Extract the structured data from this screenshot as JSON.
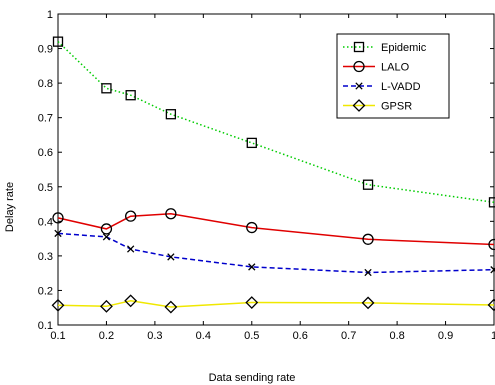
{
  "chart_data": {
    "type": "line",
    "title": "",
    "xlabel": "Data sending rate",
    "ylabel": "Delay rate",
    "xlim": [
      0.1,
      1
    ],
    "ylim": [
      0.1,
      1
    ],
    "x_ticks": [
      0.1,
      0.2,
      0.3,
      0.4,
      0.5,
      0.6,
      0.7,
      0.8,
      0.9,
      1
    ],
    "x_tick_labels": [
      "0.1",
      "0.2",
      "0.3",
      "0.4",
      "0.5",
      "0.6",
      "0.7",
      "0.8",
      "0.9",
      "1"
    ],
    "y_ticks": [
      0.1,
      0.2,
      0.3,
      0.4,
      0.5,
      0.6,
      0.7,
      0.8,
      0.9,
      1
    ],
    "y_tick_labels": [
      "0.1",
      "0.2",
      "0.3",
      "0.4",
      "0.5",
      "0.6",
      "0.7",
      "0.8",
      "0.9",
      "1"
    ],
    "grid": false,
    "legend_position": "top-right",
    "x": [
      0.1,
      0.2,
      0.25,
      0.333,
      0.5,
      0.74,
      1
    ],
    "series": [
      {
        "name": "Epidemic",
        "color": "#00cc00",
        "dash": "dotted",
        "marker": "square",
        "values": [
          0.92,
          0.785,
          0.765,
          0.71,
          0.627,
          0.506,
          0.455
        ]
      },
      {
        "name": "LALO",
        "color": "#e00000",
        "dash": "solid",
        "marker": "circle",
        "values": [
          0.41,
          0.378,
          0.415,
          0.422,
          0.382,
          0.348,
          0.333
        ]
      },
      {
        "name": "L-VADD",
        "color": "#0000cc",
        "dash": "dashed",
        "marker": "x",
        "values": [
          0.365,
          0.355,
          0.32,
          0.297,
          0.268,
          0.252,
          0.26
        ]
      },
      {
        "name": "GPSR",
        "color": "#f0e800",
        "dash": "solid",
        "marker": "diamond",
        "values": [
          0.157,
          0.154,
          0.17,
          0.152,
          0.165,
          0.164,
          0.158
        ]
      }
    ]
  }
}
